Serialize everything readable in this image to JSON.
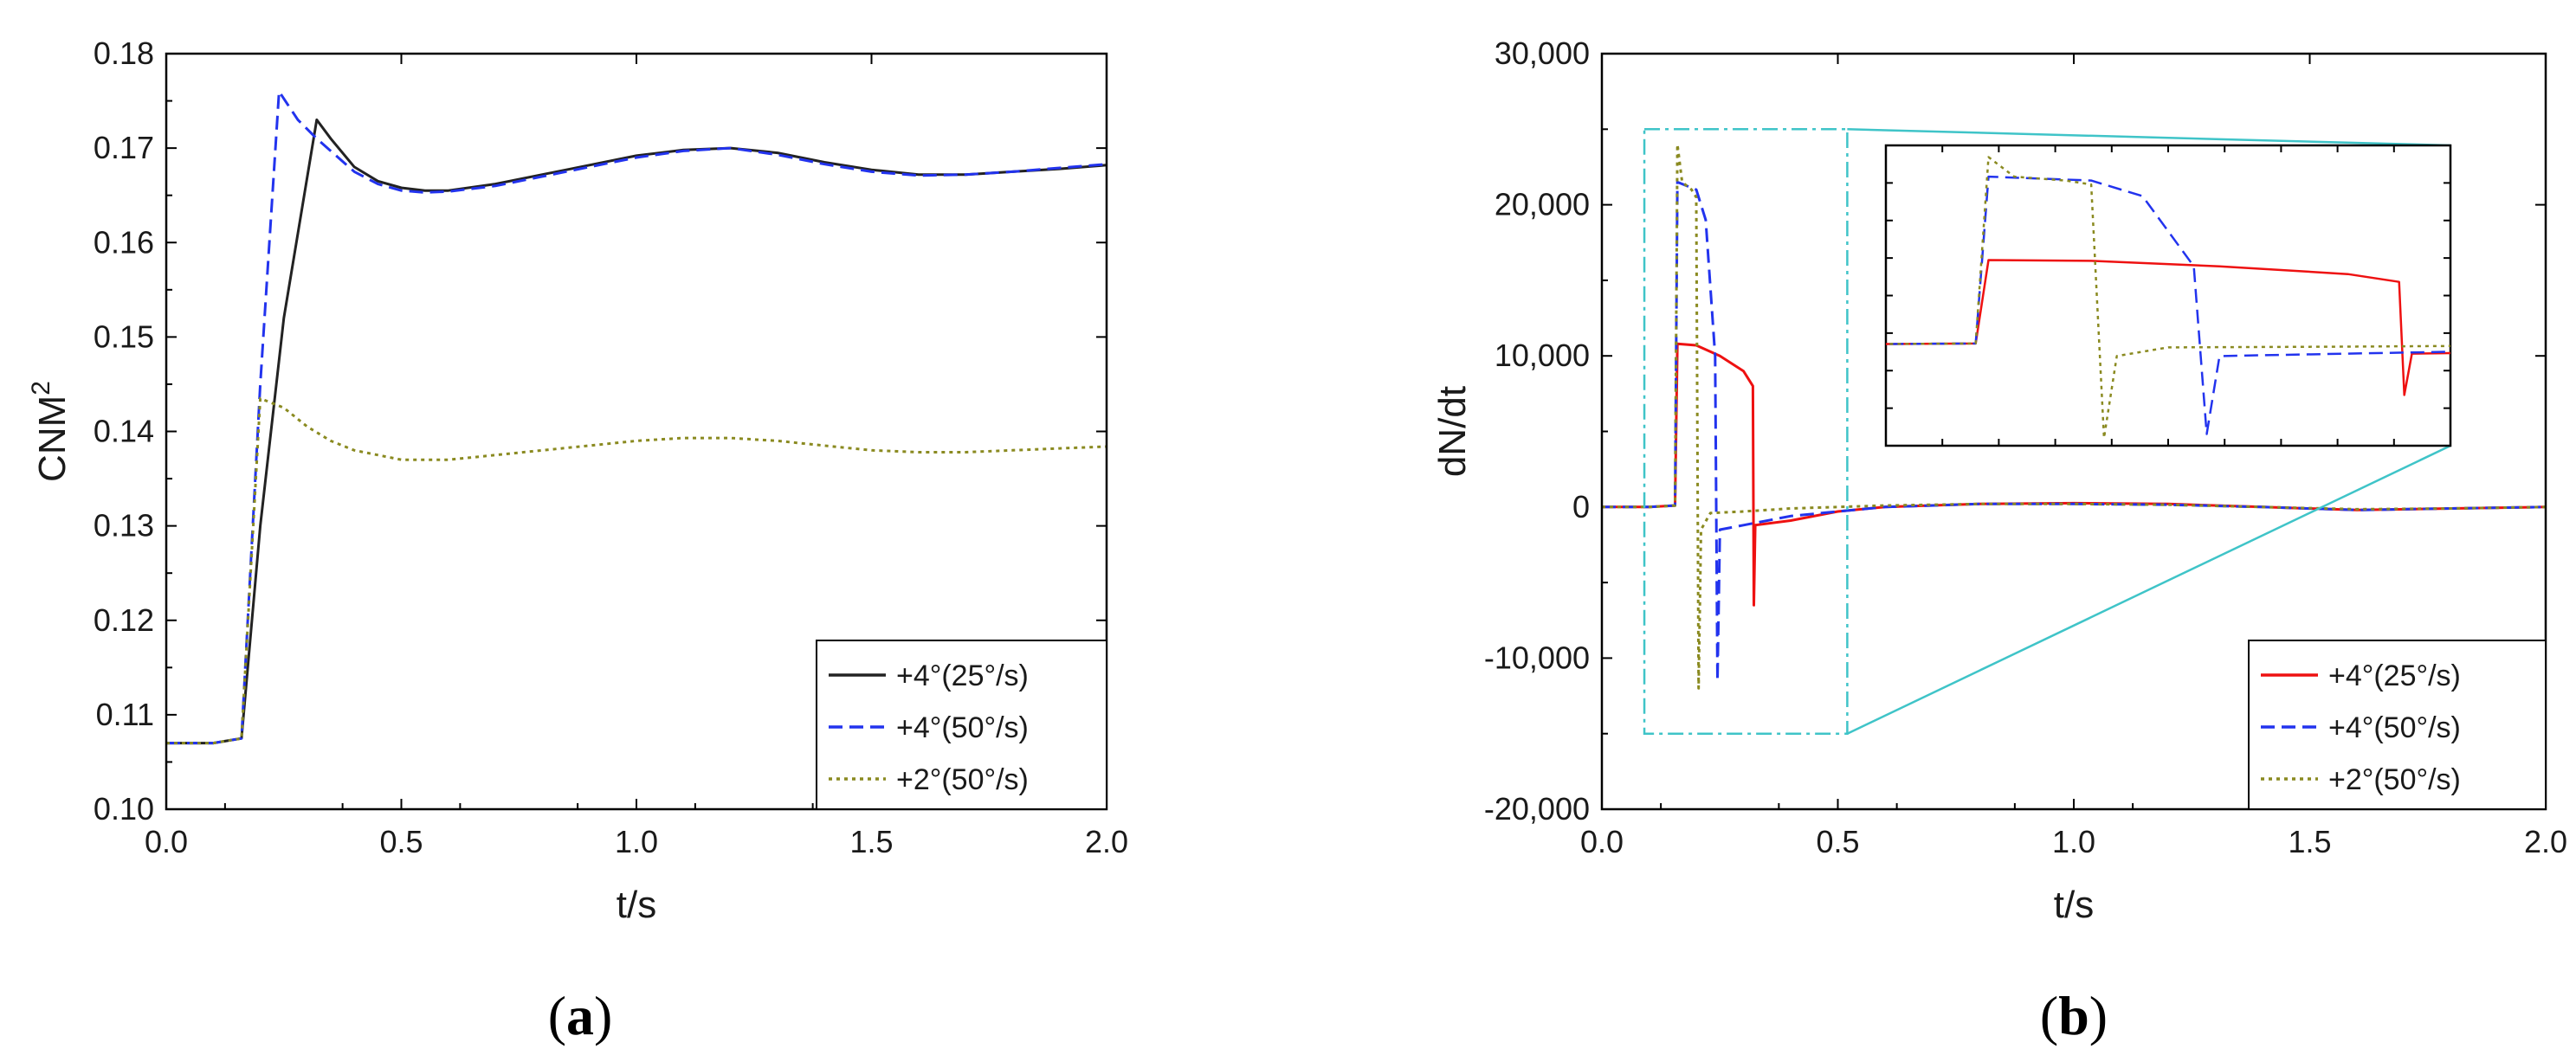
{
  "chart_data": [
    {
      "type": "line",
      "panel_label": "(a)",
      "panel_letter": "a",
      "xlabel": "t/s",
      "ylabel": "CNM",
      "ylabel_sup": "2",
      "xlim": [
        0,
        2
      ],
      "ylim": [
        0.1,
        0.18
      ],
      "xticks": [
        "0.0",
        "0.5",
        "1.0",
        "1.5",
        "2.0"
      ],
      "yticks": [
        "0.10",
        "0.11",
        "0.12",
        "0.13",
        "0.14",
        "0.15",
        "0.16",
        "0.17",
        "0.18"
      ],
      "legend_position": "bottom-right",
      "series": [
        {
          "name": "+4°(25°/s)",
          "color": "#222222",
          "style": "solid",
          "points": [
            [
              0,
              0.107
            ],
            [
              0.1,
              0.107
            ],
            [
              0.16,
              0.1075
            ],
            [
              0.2,
              0.13
            ],
            [
              0.25,
              0.152
            ],
            [
              0.32,
              0.173
            ],
            [
              0.35,
              0.171
            ],
            [
              0.4,
              0.168
            ],
            [
              0.45,
              0.1665
            ],
            [
              0.5,
              0.1658
            ],
            [
              0.55,
              0.1655
            ],
            [
              0.6,
              0.1655
            ],
            [
              0.7,
              0.1662
            ],
            [
              0.8,
              0.1672
            ],
            [
              0.9,
              0.1682
            ],
            [
              1.0,
              0.1692
            ],
            [
              1.1,
              0.1698
            ],
            [
              1.2,
              0.17
            ],
            [
              1.3,
              0.1695
            ],
            [
              1.4,
              0.1685
            ],
            [
              1.5,
              0.1677
            ],
            [
              1.6,
              0.1672
            ],
            [
              1.7,
              0.1672
            ],
            [
              1.8,
              0.1675
            ],
            [
              1.9,
              0.1678
            ],
            [
              2.0,
              0.1682
            ]
          ]
        },
        {
          "name": "+4°(50°/s)",
          "color": "#2233ee",
          "style": "dashed",
          "points": [
            [
              0,
              0.107
            ],
            [
              0.1,
              0.107
            ],
            [
              0.16,
              0.1075
            ],
            [
              0.2,
              0.145
            ],
            [
              0.24,
              0.176
            ],
            [
              0.28,
              0.173
            ],
            [
              0.32,
              0.171
            ],
            [
              0.4,
              0.1675
            ],
            [
              0.45,
              0.1662
            ],
            [
              0.5,
              0.1655
            ],
            [
              0.55,
              0.1653
            ],
            [
              0.6,
              0.1654
            ],
            [
              0.7,
              0.166
            ],
            [
              0.8,
              0.167
            ],
            [
              0.9,
              0.168
            ],
            [
              1.0,
              0.169
            ],
            [
              1.1,
              0.1697
            ],
            [
              1.2,
              0.17
            ],
            [
              1.3,
              0.1693
            ],
            [
              1.4,
              0.1683
            ],
            [
              1.5,
              0.1675
            ],
            [
              1.6,
              0.1671
            ],
            [
              1.7,
              0.1672
            ],
            [
              1.8,
              0.1675
            ],
            [
              1.9,
              0.1679
            ],
            [
              2.0,
              0.1683
            ]
          ]
        },
        {
          "name": "+2°(50°/s)",
          "color": "#8a8a20",
          "style": "dotted",
          "points": [
            [
              0,
              0.107
            ],
            [
              0.1,
              0.107
            ],
            [
              0.16,
              0.1075
            ],
            [
              0.2,
              0.1435
            ],
            [
              0.25,
              0.1425
            ],
            [
              0.3,
              0.1405
            ],
            [
              0.35,
              0.139
            ],
            [
              0.4,
              0.138
            ],
            [
              0.5,
              0.137
            ],
            [
              0.6,
              0.137
            ],
            [
              0.7,
              0.1375
            ],
            [
              0.8,
              0.138
            ],
            [
              0.9,
              0.1385
            ],
            [
              1.0,
              0.139
            ],
            [
              1.1,
              0.1393
            ],
            [
              1.2,
              0.1393
            ],
            [
              1.3,
              0.139
            ],
            [
              1.4,
              0.1385
            ],
            [
              1.5,
              0.138
            ],
            [
              1.6,
              0.1378
            ],
            [
              1.7,
              0.1378
            ],
            [
              1.8,
              0.138
            ],
            [
              1.9,
              0.1382
            ],
            [
              2.0,
              0.1384
            ]
          ]
        }
      ]
    },
    {
      "type": "line",
      "panel_label": "(b)",
      "panel_letter": "b",
      "xlabel": "t/s",
      "ylabel": "dN/dt",
      "xlim": [
        0,
        2
      ],
      "ylim": [
        -20000,
        30000
      ],
      "xticks": [
        "0.0",
        "0.5",
        "1.0",
        "1.5",
        "2.0"
      ],
      "yticks": [
        "-20,000",
        "-10,000",
        "0",
        "10,000",
        "20,000",
        "30,000"
      ],
      "legend_position": "bottom-right",
      "inset_zoom_region": {
        "x": [
          0.09,
          0.52
        ],
        "y": [
          -15000,
          25000
        ]
      },
      "series": [
        {
          "name": "+4°(25°/s)",
          "color": "#ee1111",
          "style": "solid",
          "points": [
            [
              0,
              0
            ],
            [
              0.1,
              0
            ],
            [
              0.155,
              100
            ],
            [
              0.16,
              10800
            ],
            [
              0.2,
              10700
            ],
            [
              0.25,
              10000
            ],
            [
              0.3,
              9000
            ],
            [
              0.32,
              8000
            ],
            [
              0.322,
              -6500
            ],
            [
              0.325,
              -1200
            ],
            [
              0.4,
              -900
            ],
            [
              0.5,
              -300
            ],
            [
              0.6,
              0
            ],
            [
              0.8,
              200
            ],
            [
              1.0,
              250
            ],
            [
              1.2,
              200
            ],
            [
              1.4,
              0
            ],
            [
              1.6,
              -200
            ],
            [
              1.8,
              -100
            ],
            [
              2.0,
              0
            ]
          ]
        },
        {
          "name": "+4°(50°/s)",
          "color": "#2233ee",
          "style": "dashed",
          "points": [
            [
              0,
              0
            ],
            [
              0.1,
              0
            ],
            [
              0.155,
              100
            ],
            [
              0.16,
              21500
            ],
            [
              0.2,
              21000
            ],
            [
              0.22,
              19000
            ],
            [
              0.24,
              10000
            ],
            [
              0.245,
              -11500
            ],
            [
              0.25,
              -1500
            ],
            [
              0.3,
              -1200
            ],
            [
              0.4,
              -600
            ],
            [
              0.5,
              -300
            ],
            [
              0.6,
              0
            ],
            [
              0.8,
              200
            ],
            [
              1.0,
              200
            ],
            [
              1.2,
              150
            ],
            [
              1.4,
              0
            ],
            [
              1.6,
              -200
            ],
            [
              1.8,
              -100
            ],
            [
              2.0,
              0
            ]
          ]
        },
        {
          "name": "+2°(50°/s)",
          "color": "#8a8a20",
          "style": "dotted",
          "points": [
            [
              0,
              0
            ],
            [
              0.1,
              0
            ],
            [
              0.155,
              100
            ],
            [
              0.16,
              24000
            ],
            [
              0.17,
              21500
            ],
            [
              0.19,
              21000
            ],
            [
              0.2,
              20500
            ],
            [
              0.205,
              -12000
            ],
            [
              0.21,
              -1500
            ],
            [
              0.23,
              -400
            ],
            [
              0.3,
              -300
            ],
            [
              0.4,
              -100
            ],
            [
              0.5,
              0
            ],
            [
              0.6,
              100
            ],
            [
              0.8,
              200
            ],
            [
              1.0,
              200
            ],
            [
              1.2,
              150
            ],
            [
              1.4,
              0
            ],
            [
              1.6,
              -150
            ],
            [
              1.8,
              -100
            ],
            [
              2.0,
              0
            ]
          ]
        }
      ]
    }
  ]
}
